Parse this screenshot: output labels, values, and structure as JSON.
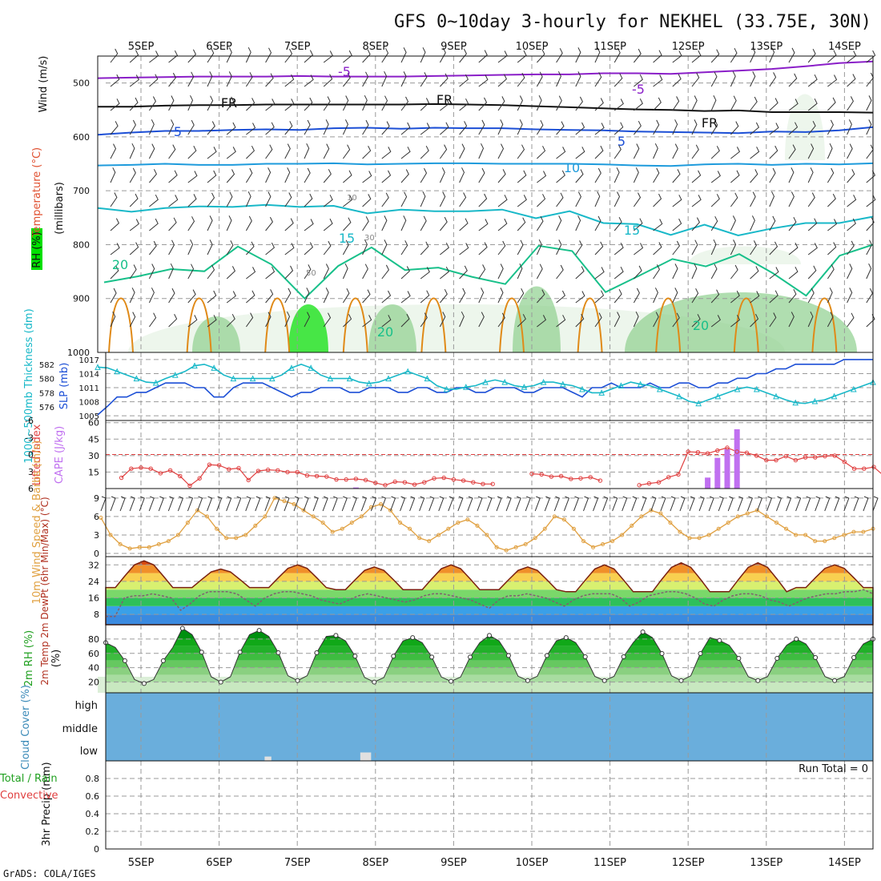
{
  "title": "GFS 0~10day 3-hourly for NEKHEL (33.75E, 30N)",
  "footer": "GrADS: COLA/IGES",
  "dates": [
    "5SEP",
    "6SEP",
    "7SEP",
    "8SEP",
    "9SEP",
    "10SEP",
    "11SEP",
    "12SEP",
    "13SEP",
    "14SEP"
  ],
  "colors": {
    "purple": "#8a1ec8",
    "black": "#111111",
    "blue": "#1c4fd6",
    "lightblue": "#1e9bdc",
    "teal": "#18b8c8",
    "green": "#18c08a",
    "orange": "#e08a18",
    "magenta": "#d01a8a",
    "rh_light": "#e6f2e4",
    "rh_mid": "#8fd08f",
    "rh_dark": "#3cc03c",
    "rh_bright": "#00e000",
    "cloud": "#6aaedc",
    "cape": "#c070f0",
    "li": "#e04040",
    "wind10": "#e0a040"
  },
  "chart_data": [
    {
      "panel": "upper-air",
      "type": "contour",
      "ylabel": "(millibars)",
      "left_labels": [
        "Wind (m/s)",
        "Temperature (°C)",
        "RH (%)"
      ],
      "ylim": [
        1000,
        450
      ],
      "yticks": [
        500,
        600,
        700,
        800,
        900,
        1000
      ],
      "isotherm_labels": [
        "-5",
        "FR",
        "-5",
        "FR",
        "5",
        "-5",
        "10",
        "15",
        "20"
      ],
      "rh_labels": [
        "10",
        "30",
        "50"
      ],
      "isotherms": [
        {
          "name": "-5C",
          "color": "purple",
          "p": [
            491,
            490,
            489,
            488,
            488,
            488,
            487,
            488,
            488,
            488,
            487,
            486,
            485,
            484,
            484,
            482,
            482,
            483,
            480,
            477,
            474,
            469,
            463,
            460
          ]
        },
        {
          "name": "freezing level",
          "color": "black",
          "p": [
            544,
            544,
            542,
            541,
            541,
            540,
            540,
            540,
            540,
            540,
            539,
            540,
            541,
            543,
            545,
            547,
            549,
            550,
            552,
            551,
            554,
            554,
            554,
            555
          ]
        },
        {
          "name": "5C",
          "color": "blue",
          "p": [
            596,
            592,
            589,
            589,
            587,
            586,
            587,
            584,
            583,
            585,
            583,
            584,
            584,
            586,
            587,
            588,
            590,
            591,
            592,
            593,
            590,
            591,
            588,
            582
          ]
        },
        {
          "name": "10C",
          "color": "lightblue",
          "p": [
            653,
            652,
            650,
            652,
            652,
            650,
            650,
            649,
            651,
            650,
            649,
            649,
            650,
            650,
            650,
            651,
            653,
            654,
            651,
            650,
            652,
            650,
            651,
            649
          ]
        },
        {
          "name": "15C",
          "color": "teal",
          "p": [
            732,
            739,
            732,
            729,
            730,
            726,
            730,
            728,
            742,
            735,
            738,
            738,
            735,
            751,
            738,
            760,
            762,
            782,
            763,
            783,
            770,
            760,
            760,
            748
          ]
        }
      ]
    },
    {
      "panel": "thickness-slp",
      "type": "line",
      "ylabel_left": "1000~500mb Thickness (dm)",
      "ylabel_right": "SLP (mb)",
      "yticks_left": [
        576,
        578,
        580,
        582
      ],
      "yticks_right": [
        1005,
        1008,
        1011,
        1014,
        1017
      ],
      "series": [
        {
          "name": "SLP (mb)",
          "color": "blue",
          "values": [
            1005.2,
            1007,
            1009,
            1009,
            1010,
            1010,
            1011,
            1012,
            1012,
            1012,
            1011,
            1011,
            1009,
            1009,
            1011,
            1012,
            1012,
            1012,
            1011,
            1010,
            1009,
            1010,
            1010,
            1011,
            1011,
            1011,
            1010,
            1010,
            1011,
            1011,
            1011,
            1010,
            1010,
            1011,
            1011,
            1010,
            1010,
            1011,
            1011,
            1010,
            1010,
            1011,
            1011,
            1011,
            1010,
            1010,
            1011,
            1011,
            1011,
            1010,
            1009,
            1011,
            1011,
            1012,
            1011,
            1011,
            1011,
            1012,
            1011,
            1011,
            1012,
            1012,
            1011,
            1011,
            1012,
            1012,
            1013,
            1013,
            1014,
            1014,
            1015,
            1015,
            1016,
            1016,
            1016,
            1016,
            1016,
            1017,
            1017,
            1017,
            1017
          ]
        },
        {
          "name": "Thickness (dm)",
          "color": "teal",
          "values": [
            581.6,
            581.5,
            581,
            580.5,
            580,
            579.5,
            579.4,
            580,
            580.5,
            581,
            581.8,
            582,
            581.5,
            580.5,
            580,
            580,
            580,
            580,
            580,
            580.5,
            581.5,
            582,
            581.5,
            580.5,
            580,
            580,
            580,
            579.5,
            579.3,
            579.5,
            580,
            580.5,
            581,
            580.5,
            580,
            579,
            578.5,
            578.5,
            578.8,
            579,
            579.5,
            579.8,
            579.5,
            579,
            578.8,
            579,
            579.5,
            579.5,
            579.2,
            579,
            578.5,
            578,
            578,
            578.5,
            579,
            579.5,
            579.2,
            579,
            578.5,
            578,
            577.5,
            576.8,
            576.5,
            577,
            577.5,
            578,
            578.5,
            578.8,
            578.5,
            578,
            577.5,
            577,
            576.6,
            576.5,
            576.8,
            577,
            577.5,
            578,
            578.5,
            579,
            579.5
          ]
        }
      ]
    },
    {
      "panel": "cape-li",
      "type": "bar+line",
      "ylabel_left": "Lifted Index",
      "ylabel_right": "CAPE (J/kg)",
      "yticks_left": [
        6,
        3,
        0,
        -3,
        -6
      ],
      "yticks_right": [
        15,
        30,
        45,
        60
      ],
      "series": [
        {
          "name": "Lifted Index",
          "color": "li",
          "values": [
            null,
            null,
            4.1,
            2.5,
            2.3,
            2.5,
            3.3,
            2.8,
            3.8,
            5.5,
            4.2,
            1.8,
            1.9,
            2.6,
            2.4,
            4.5,
            2.9,
            2.7,
            2.8,
            3.1,
            3.1,
            3.7,
            3.8,
            3.9,
            4.4,
            4.4,
            4.3,
            4.5,
            5.0,
            5.4,
            4.8,
            4.9,
            5.3,
            4.9,
            4.2,
            4.1,
            4.4,
            4.6,
            4.9,
            5.2,
            5.2,
            null,
            null,
            null,
            3.4,
            3.5,
            3.9,
            3.8,
            4.3,
            4.2,
            4.0,
            4.6,
            null,
            null,
            null,
            5.4,
            5.1,
            4.9,
            4.0,
            3.5,
            -0.5,
            -0.4,
            -0.2,
            -0.7,
            -1.2,
            -0.5,
            -0.3,
            0.2,
            1.0,
            1.0,
            0.3,
            1.0,
            0.5,
            0.5,
            0.3,
            0.2,
            1.3,
            2.5,
            2.5,
            2.2,
            3.7
          ]
        },
        {
          "name": "CAPE (J/kg)",
          "color": "cape",
          "x_index": [
            26,
            62,
            63,
            64,
            65
          ],
          "values": [
            1,
            10,
            28,
            36,
            54
          ]
        }
      ]
    },
    {
      "panel": "wind10m",
      "type": "line",
      "ylabel": "10m Wind Speed & Barbs (m/s)",
      "yticks": [
        0,
        3,
        6,
        9
      ],
      "series": [
        {
          "name": "10m wind speed",
          "color": "wind10",
          "values": [
            5.8,
            3,
            1.5,
            0.8,
            1,
            1,
            1.5,
            2,
            3,
            5,
            7,
            6,
            4,
            2.5,
            2.5,
            3,
            4.5,
            6,
            9,
            8.5,
            8,
            7,
            6,
            5,
            3.5,
            4,
            5,
            6,
            7.5,
            8,
            7,
            5,
            4,
            2.5,
            2,
            3,
            4,
            5,
            5.5,
            4.5,
            3,
            1,
            0.5,
            1,
            1.5,
            2.5,
            4,
            6,
            5.5,
            4,
            2,
            1,
            1.5,
            2,
            3,
            4.5,
            6,
            7,
            6.5,
            5,
            3.5,
            2.5,
            2.5,
            3,
            4,
            5,
            6,
            6.5,
            7,
            6,
            5,
            4,
            3,
            3,
            2,
            2,
            2.5,
            3,
            3.5,
            3.5,
            4
          ]
        }
      ]
    },
    {
      "panel": "temp2m",
      "type": "area+line",
      "ylabel": "2m Temp 2m DewPt (6hr Min/Max) (°C)",
      "yticks": [
        8,
        16,
        24,
        32
      ],
      "series": [
        {
          "name": "2m temperature",
          "color": "#7a2010",
          "daily_min": [
            21,
            21,
            21,
            20,
            20,
            20,
            19,
            19,
            19,
            21
          ],
          "daily_max": [
            34,
            30,
            32,
            31,
            32,
            31,
            32,
            33,
            33,
            32
          ]
        },
        {
          "name": "2m dewpoint",
          "color": "#806070",
          "values": [
            7,
            7,
            16,
            17,
            17,
            18,
            17,
            16,
            10,
            13,
            17,
            19,
            19,
            19,
            18,
            15,
            12,
            16,
            18,
            19,
            19,
            18,
            17,
            15,
            14,
            13,
            15,
            17,
            18,
            17,
            16,
            15,
            14,
            15,
            17,
            18,
            18,
            17,
            16,
            15,
            13,
            11,
            15,
            17,
            17,
            18,
            17,
            16,
            14,
            12,
            15,
            17,
            18,
            18,
            18,
            16,
            12,
            14,
            17,
            18,
            19,
            19,
            18,
            16,
            13,
            12,
            15,
            17,
            18,
            18,
            17,
            15,
            14,
            12,
            14,
            16,
            17,
            18,
            18,
            19,
            19,
            20,
            18
          ]
        }
      ]
    },
    {
      "panel": "rh2m",
      "type": "area",
      "ylabel": "2m RH (%)",
      "yticks": [
        20,
        40,
        60,
        80
      ],
      "series": [
        {
          "name": "2m RH",
          "color": "green",
          "daily_max": [
            75,
            95,
            92,
            85,
            82,
            85,
            82,
            90,
            78,
            80
          ],
          "daily_min": [
            18,
            20,
            22,
            20,
            21,
            22,
            22,
            22,
            22,
            22
          ]
        }
      ]
    },
    {
      "panel": "cloud-cover",
      "type": "table",
      "ylabel": "Cloud Cover (%)",
      "levels": [
        "high",
        "middle",
        "low"
      ],
      "low_cloud_patches": [
        {
          "x_index": 17,
          "value": 8
        },
        {
          "x_index": 27,
          "value": 25
        }
      ]
    },
    {
      "panel": "precip",
      "type": "bar",
      "ylabel": "3hr Precip (mm)",
      "left_labels": [
        "Total / Rain",
        "Convective"
      ],
      "yticks": [
        0,
        0.2,
        0.4,
        0.6,
        0.8
      ],
      "ylim": [
        0,
        1
      ],
      "run_total": "Run Total = 0",
      "values": []
    }
  ]
}
